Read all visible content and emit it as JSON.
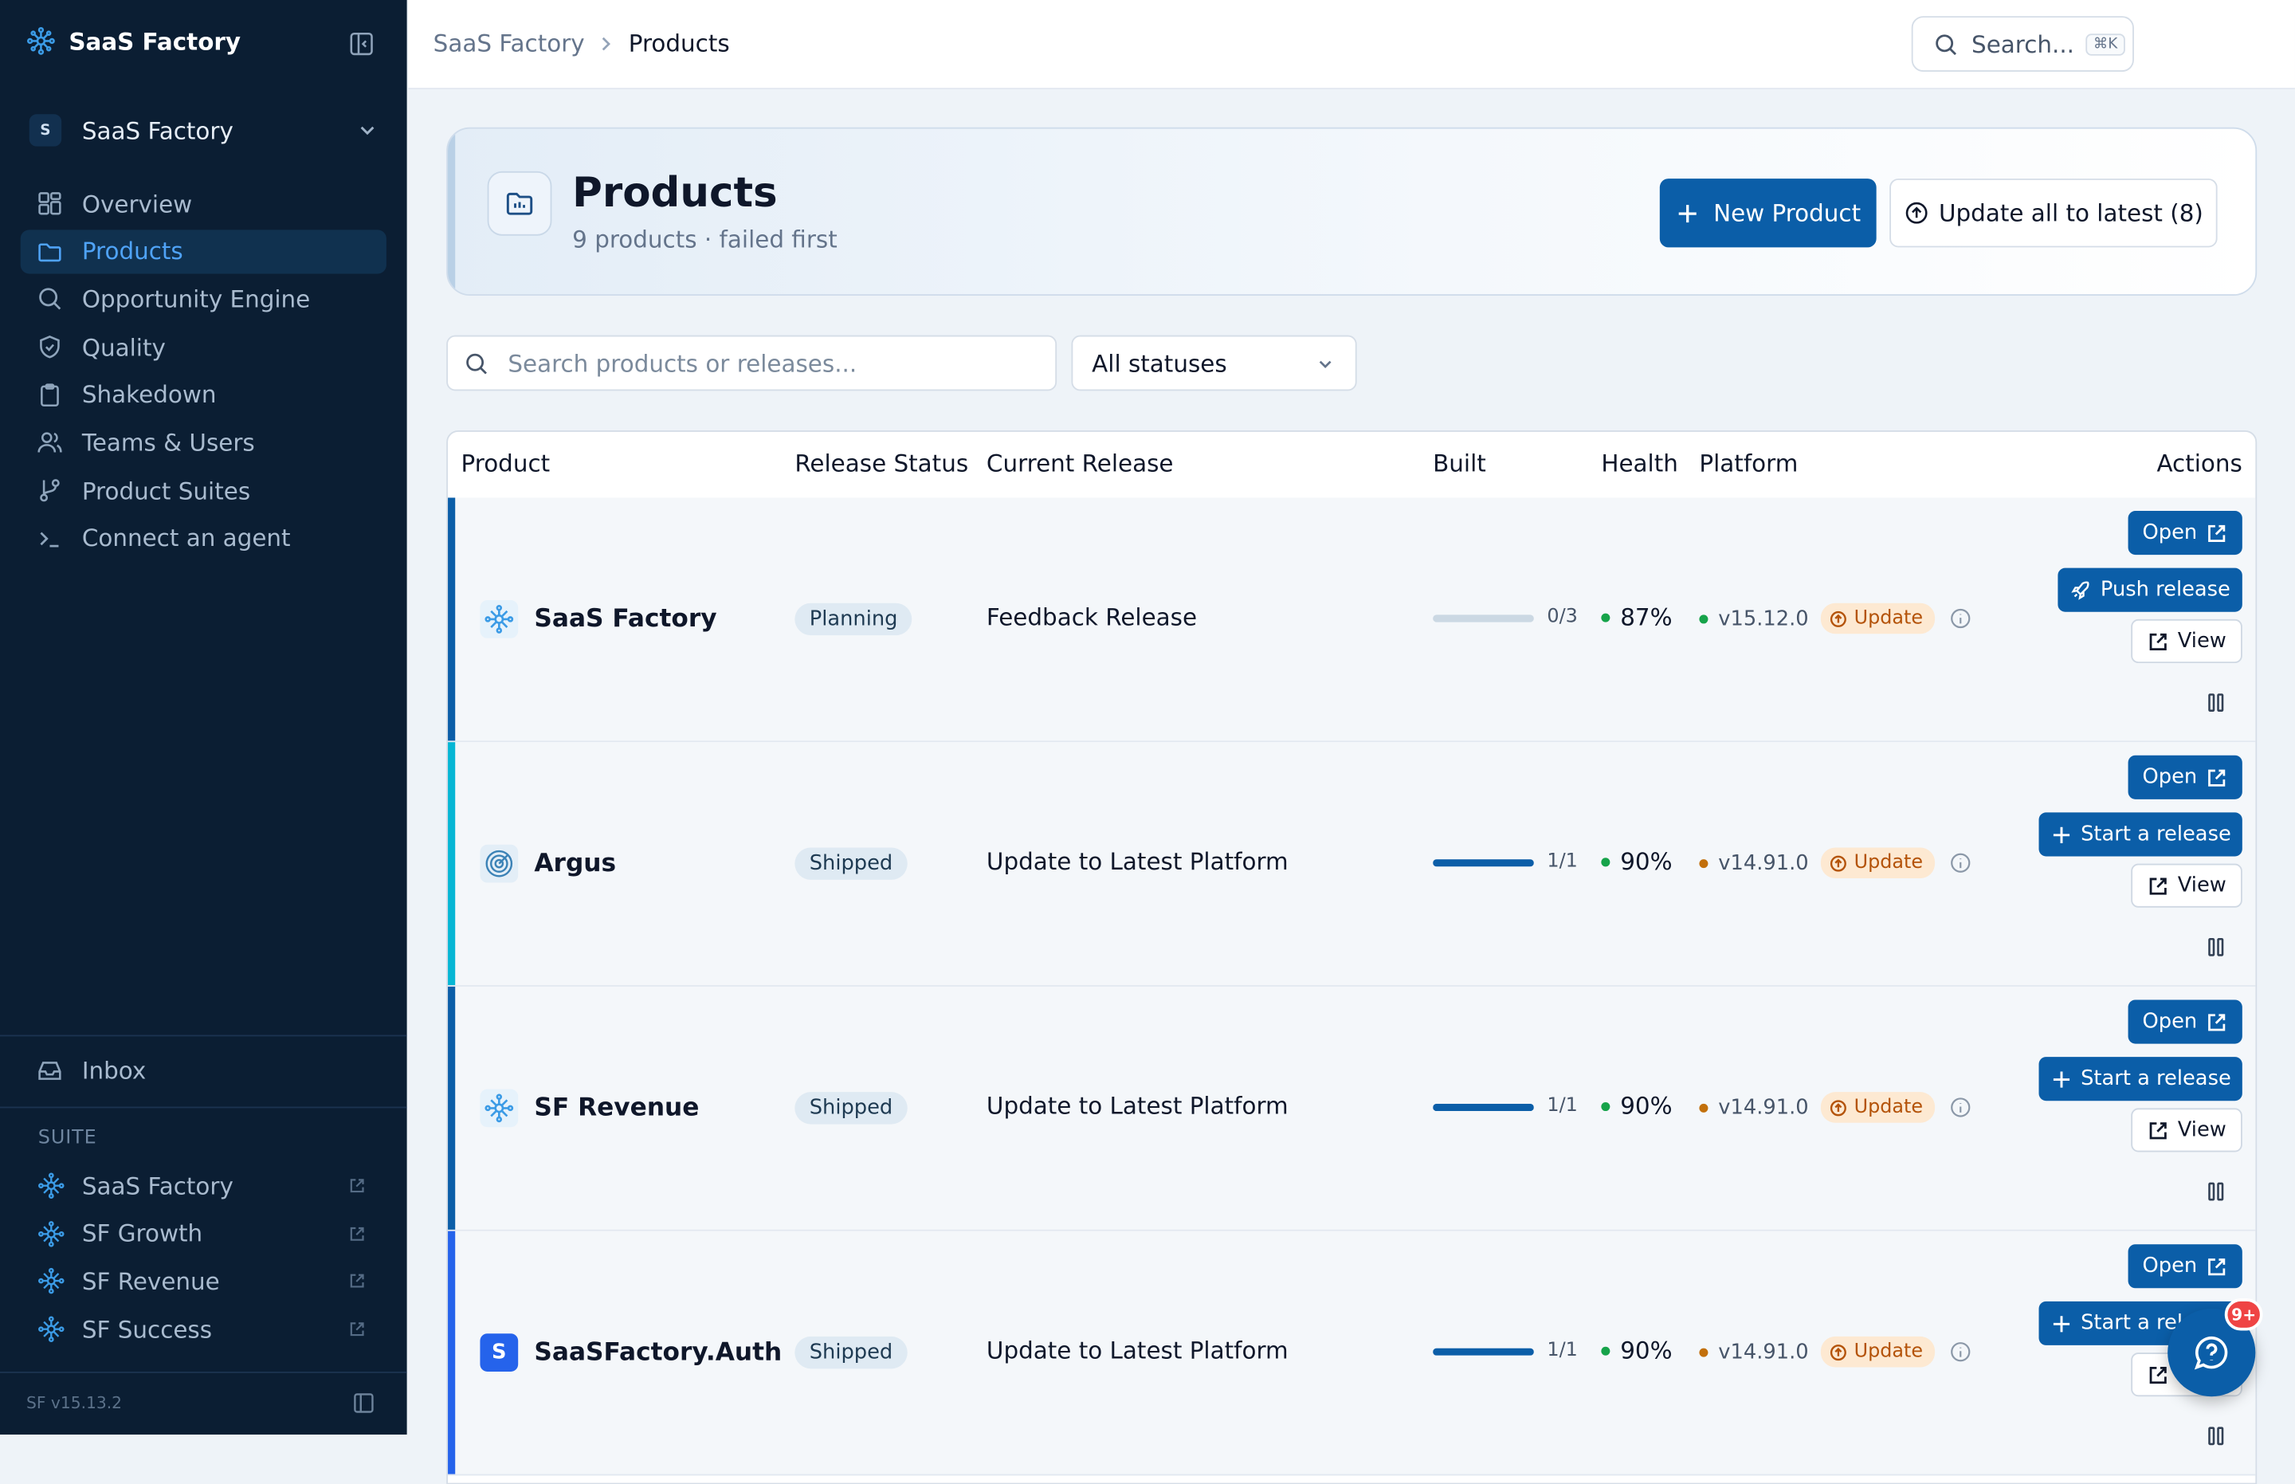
{
  "app": {
    "name": "SaaS Factory",
    "version": "SF v15.13.2"
  },
  "workspace": {
    "avatar": "S",
    "name": "SaaS Factory"
  },
  "nav": [
    {
      "label": "Overview",
      "icon": "grid-icon"
    },
    {
      "label": "Products",
      "icon": "folder-icon",
      "active": true
    },
    {
      "label": "Opportunity Engine",
      "icon": "search-icon"
    },
    {
      "label": "Quality",
      "icon": "shield-icon"
    },
    {
      "label": "Shakedown",
      "icon": "clipboard-icon"
    },
    {
      "label": "Teams & Users",
      "icon": "users-icon"
    },
    {
      "label": "Product Suites",
      "icon": "git-branch-icon"
    },
    {
      "label": "Connect an agent",
      "icon": "terminal-icon"
    }
  ],
  "inbox": {
    "label": "Inbox"
  },
  "suite": {
    "label": "SUITE",
    "items": [
      {
        "label": "SaaS Factory"
      },
      {
        "label": "SF Growth"
      },
      {
        "label": "SF Revenue"
      },
      {
        "label": "SF Success"
      }
    ]
  },
  "topbar": {
    "breadcrumb": [
      "SaaS Factory",
      "Products"
    ],
    "search_placeholder": "Search...",
    "search_shortcut": "⌘K"
  },
  "header": {
    "title": "Products",
    "subtitle": "9 products · failed first",
    "new_button": "New Product",
    "update_all_button": "Update all to latest (8)"
  },
  "filters": {
    "search_placeholder": "Search products or releases...",
    "status_selected": "All statuses"
  },
  "table": {
    "columns": [
      "Product",
      "Release Status",
      "Current Release",
      "Built",
      "Health",
      "Platform",
      "Actions"
    ],
    "rows": [
      {
        "name": "SaaS Factory",
        "logo": "network-icon",
        "status": "Planning",
        "release": "Feedback Release",
        "built": "0/3",
        "built_fraction": 0,
        "health": "87%",
        "platform": "v15.12.0",
        "platform_dot": "#16a34a",
        "update": "Update",
        "primary_action": "Push release",
        "primary_icon": "rocket-icon",
        "accent": "#0b5ea8"
      },
      {
        "name": "Argus",
        "logo": "target-icon",
        "status": "Shipped",
        "release": "Update to Latest Platform",
        "built": "1/1",
        "built_fraction": 1,
        "health": "90%",
        "platform": "v14.91.0",
        "platform_dot": "#c2700c",
        "update": "Update",
        "primary_action": "Start a release",
        "primary_icon": "plus-icon",
        "accent": "#06b6d4"
      },
      {
        "name": "SF Revenue",
        "logo": "network-icon",
        "status": "Shipped",
        "release": "Update to Latest Platform",
        "built": "1/1",
        "built_fraction": 1,
        "health": "90%",
        "platform": "v14.91.0",
        "platform_dot": "#c2700c",
        "update": "Update",
        "primary_action": "Start a release",
        "primary_icon": "plus-icon",
        "accent": "#0b5ea8"
      },
      {
        "name": "SaaSFactory.Auth",
        "logo": "letter-s-icon",
        "status": "Shipped",
        "release": "Update to Latest Platform",
        "built": "1/1",
        "built_fraction": 1,
        "health": "90%",
        "platform": "v14.91.0",
        "platform_dot": "#c2700c",
        "update": "Update",
        "primary_action": "Start a release",
        "primary_icon": "plus-icon",
        "accent": "#2563eb"
      }
    ],
    "open_label": "Open",
    "view_label": "View"
  },
  "help": {
    "badge": "9+"
  },
  "colors": {
    "sidebar_bg": "#0b1e33",
    "primary": "#0b5ea8",
    "active_text": "#4fa3f7",
    "update_pill": "#fde9d2"
  }
}
